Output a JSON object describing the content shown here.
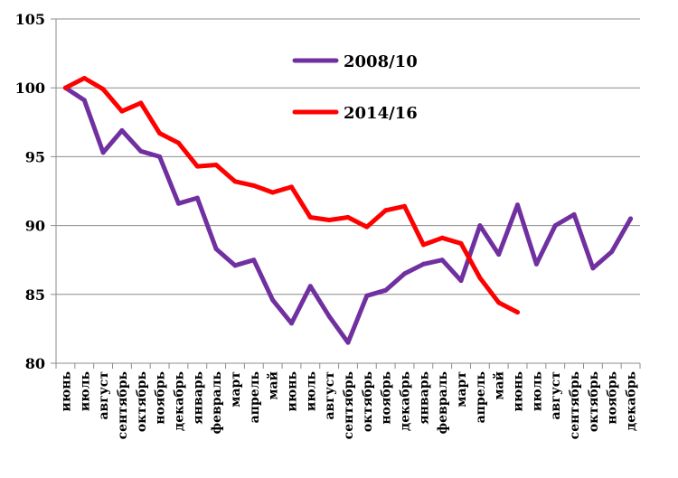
{
  "chart_data": {
    "type": "line",
    "categories": [
      "июнь",
      "июль",
      "август",
      "сентябрь",
      "октябрь",
      "ноябрь",
      "декабрь",
      "январь",
      "февраль",
      "март",
      "апрель",
      "май",
      "июнь",
      "июль",
      "август",
      "сентябрь",
      "октябрь",
      "ноябрь",
      "декабрь",
      "январь",
      "февраль",
      "март",
      "апрель",
      "май",
      "июнь",
      "июль",
      "август",
      "сентябрь",
      "октябрь",
      "ноябрь",
      "декабрь"
    ],
    "ylim": [
      80,
      105
    ],
    "yticks": [
      80,
      85,
      90,
      95,
      100,
      105
    ],
    "grid": true,
    "legend_position": "top-center",
    "series": [
      {
        "name": "2008/10",
        "color": "#7030A0",
        "values": [
          100.0,
          99.1,
          95.3,
          96.9,
          95.4,
          95.0,
          91.6,
          92.0,
          88.3,
          87.1,
          87.5,
          84.6,
          82.9,
          85.6,
          83.4,
          81.5,
          84.9,
          85.3,
          86.5,
          87.2,
          87.5,
          86.0,
          90.0,
          87.9,
          91.5,
          87.2,
          90.0,
          90.8,
          86.9,
          88.1,
          90.5
        ]
      },
      {
        "name": "2014/16",
        "color": "#FF0000",
        "values": [
          100.0,
          100.7,
          99.9,
          98.3,
          98.9,
          96.7,
          96.0,
          94.3,
          94.4,
          93.2,
          92.9,
          92.4,
          92.8,
          90.6,
          90.4,
          90.6,
          89.9,
          91.1,
          91.4,
          88.6,
          89.1,
          88.7,
          86.2,
          84.4,
          83.7,
          null,
          null,
          null,
          null,
          null,
          null
        ]
      }
    ]
  }
}
